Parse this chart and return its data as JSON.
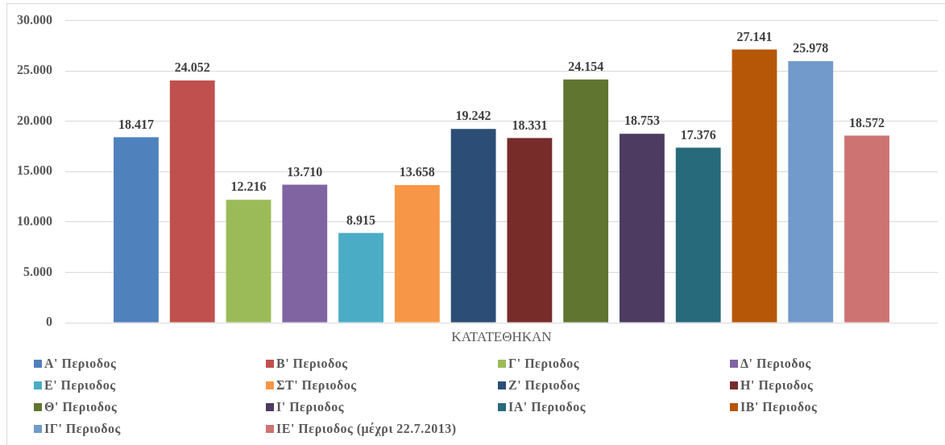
{
  "chart_data": {
    "type": "bar",
    "categories": [
      "ΚΑΤΑΤΕΘΗΚΑΝ"
    ],
    "series": [
      {
        "name": "Α' Περιοδος",
        "color": "#4f81bd",
        "values": [
          18417
        ],
        "value_labels": [
          "18.417"
        ]
      },
      {
        "name": "Β' Περιοδος",
        "color": "#c0504d",
        "values": [
          24052
        ],
        "value_labels": [
          "24.052"
        ]
      },
      {
        "name": "Γ' Περιοδος",
        "color": "#9bbb59",
        "values": [
          12216
        ],
        "value_labels": [
          "12.216"
        ]
      },
      {
        "name": "Δ' Περιοδος",
        "color": "#8064a2",
        "values": [
          13710
        ],
        "value_labels": [
          "13.710"
        ]
      },
      {
        "name": "Ε' Περιοδος",
        "color": "#4bacc6",
        "values": [
          8915
        ],
        "value_labels": [
          "8.915"
        ]
      },
      {
        "name": "ΣΤ' Περιοδος",
        "color": "#f79646",
        "values": [
          13658
        ],
        "value_labels": [
          "13.658"
        ]
      },
      {
        "name": "Ζ' Περιοδος",
        "color": "#2c4d75",
        "values": [
          19242
        ],
        "value_labels": [
          "19.242"
        ]
      },
      {
        "name": "Η' Περιοδος",
        "color": "#772c2a",
        "values": [
          18331
        ],
        "value_labels": [
          "18.331"
        ]
      },
      {
        "name": "Θ' Περιοδος",
        "color": "#5f7530",
        "values": [
          24154
        ],
        "value_labels": [
          "24.154"
        ]
      },
      {
        "name": "Ι' Περιοδος",
        "color": "#4d3b62",
        "values": [
          18753
        ],
        "value_labels": [
          "18.753"
        ]
      },
      {
        "name": "ΙΑ' Περιοδος",
        "color": "#276a7c",
        "values": [
          17376
        ],
        "value_labels": [
          "17.376"
        ]
      },
      {
        "name": "ΙΒ' Περιοδος",
        "color": "#b65708",
        "values": [
          27141
        ],
        "value_labels": [
          "27.141"
        ]
      },
      {
        "name": "ΙΓ' Περιοδος",
        "color": "#729aca",
        "values": [
          25978
        ],
        "value_labels": [
          "25.978"
        ]
      },
      {
        "name": "ΙΕ' Περιοδος (μέχρι 22.7.2013)",
        "color": "#cd7371",
        "values": [
          18572
        ],
        "value_labels": [
          "18.572"
        ]
      }
    ],
    "ylim": [
      0,
      30000
    ],
    "yticks": [
      0,
      {
        "value": 5000,
        "label": "5.000"
      },
      {
        "value": 10000,
        "label": "10.000"
      },
      {
        "value": 15000,
        "label": "15.000"
      },
      {
        "value": 20000,
        "label": "20.000"
      },
      {
        "value": 25000,
        "label": "25.000"
      },
      {
        "value": 30000,
        "label": "30.000"
      }
    ],
    "grid": "y",
    "legend": "bottom"
  }
}
